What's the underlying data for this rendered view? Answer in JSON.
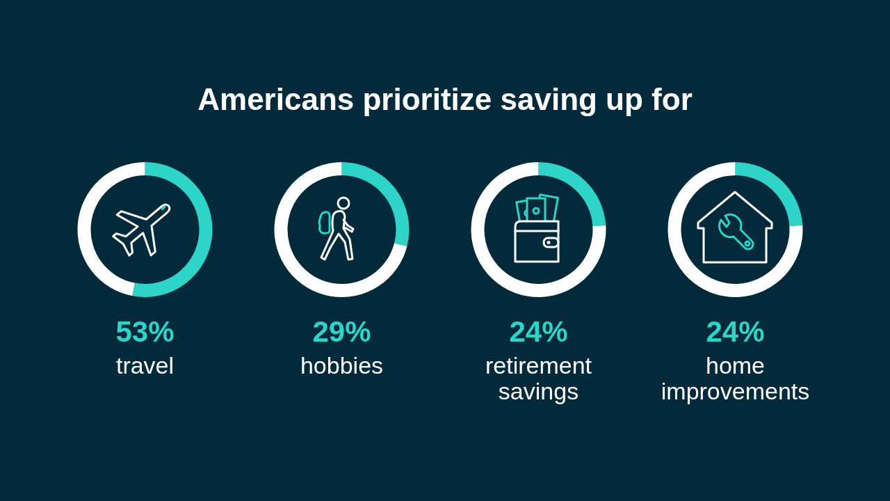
{
  "chart_data": [
    {
      "type": "other",
      "title": "Americans prioritize saving up for"
    },
    {
      "type": "donut",
      "title": "travel",
      "categories": [
        null,
        null
      ],
      "values": [
        53,
        47
      ],
      "colors": [
        "#2dd4c7",
        "#ffffff"
      ],
      "annotations": [
        "53%"
      ]
    },
    {
      "type": "donut",
      "title": "hobbies",
      "categories": [
        null,
        null
      ],
      "values": [
        29,
        71
      ],
      "colors": [
        "#2dd4c7",
        "#ffffff"
      ],
      "annotations": [
        "29%"
      ]
    },
    {
      "type": "donut",
      "title": "retirement savings",
      "categories": [
        null,
        null
      ],
      "values": [
        24,
        76
      ],
      "colors": [
        "#2dd4c7",
        "#ffffff"
      ],
      "annotations": [
        "24%"
      ]
    },
    {
      "type": "donut",
      "title": "home improvements",
      "categories": [
        null,
        null
      ],
      "values": [
        24,
        76
      ],
      "colors": [
        "#2dd4c7",
        "#ffffff"
      ],
      "annotations": [
        "24%"
      ]
    }
  ]
}
